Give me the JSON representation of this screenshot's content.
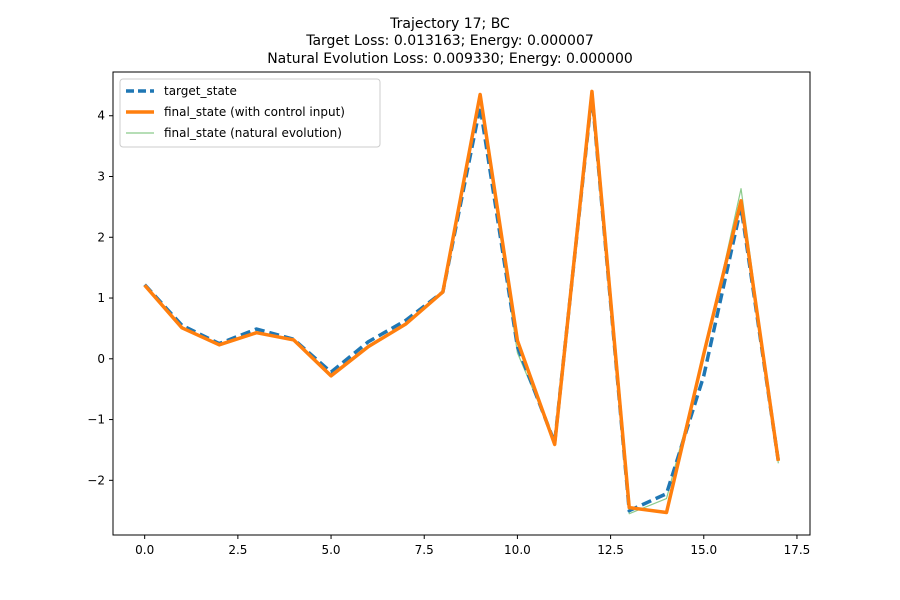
{
  "chart_data": {
    "type": "line",
    "title_lines": [
      "Trajectory 17; BC",
      "Target Loss: 0.013163; Energy: 0.000007",
      "Natural Evolution Loss: 0.009330; Energy: 0.000000"
    ],
    "xlabel": "",
    "ylabel": "",
    "xlim": [
      -0.85,
      17.85
    ],
    "ylim": [
      -2.9,
      4.72
    ],
    "xticks": [
      0.0,
      2.5,
      5.0,
      7.5,
      10.0,
      12.5,
      15.0,
      17.5
    ],
    "xtick_labels": [
      "0.0",
      "2.5",
      "5.0",
      "7.5",
      "10.0",
      "12.5",
      "15.0",
      "17.5"
    ],
    "yticks": [
      -2,
      -1,
      0,
      1,
      2,
      3,
      4
    ],
    "ytick_labels": [
      "−2",
      "−1",
      "0",
      "1",
      "2",
      "3",
      "4"
    ],
    "grid": false,
    "legend_position": "upper-left",
    "x": [
      0,
      1,
      2,
      3,
      4,
      5,
      6,
      7,
      8,
      9,
      10,
      11,
      12,
      13,
      14,
      15,
      16,
      17
    ],
    "series": [
      {
        "name": "target_state",
        "color": "#1f77b4",
        "style": "dashed",
        "values": [
          1.22,
          0.55,
          0.25,
          0.49,
          0.32,
          -0.22,
          0.28,
          0.63,
          1.1,
          4.15,
          0.2,
          -1.38,
          4.35,
          -2.5,
          -2.22,
          -0.28,
          2.5,
          -1.68
        ]
      },
      {
        "name": "final_state (with control input)",
        "color": "#ff7f0e",
        "style": "solid",
        "values": [
          1.21,
          0.51,
          0.23,
          0.43,
          0.31,
          -0.28,
          0.2,
          0.57,
          1.1,
          4.35,
          0.3,
          -1.41,
          4.4,
          -2.45,
          -2.53,
          0.08,
          2.6,
          -1.68
        ]
      },
      {
        "name": "final_state (natural evolution)",
        "color": "#2ca02c",
        "style": "thin",
        "values": [
          1.2,
          0.5,
          0.23,
          0.42,
          0.31,
          -0.27,
          0.22,
          0.58,
          1.1,
          4.3,
          0.1,
          -1.35,
          4.35,
          -2.55,
          -2.3,
          0.0,
          2.8,
          -1.72
        ]
      }
    ]
  }
}
